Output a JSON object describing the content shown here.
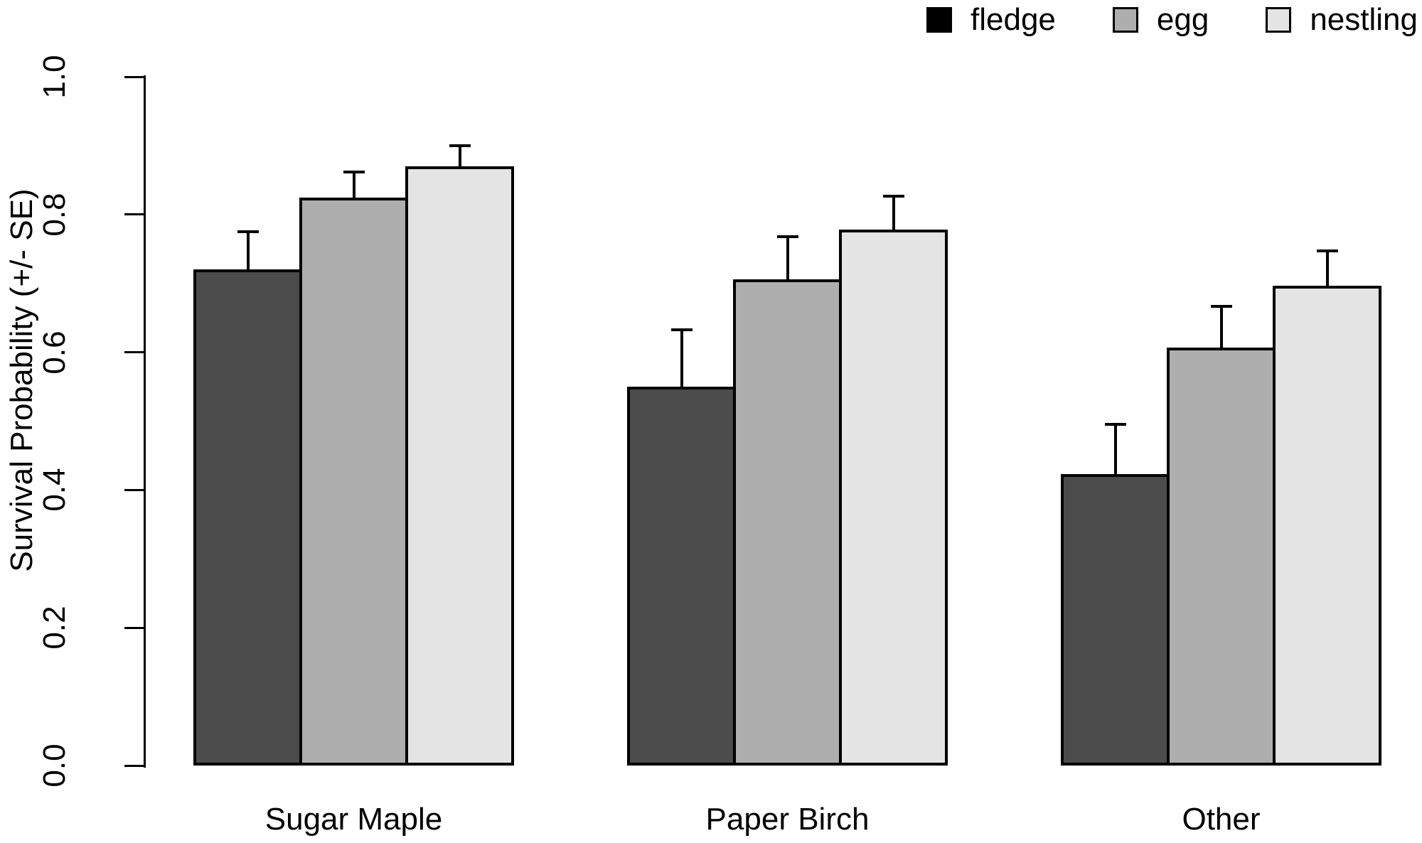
{
  "figure": {
    "background": "#ffffff"
  },
  "legend": {
    "position": "top-right",
    "items": [
      {
        "label": "fledge",
        "color": "#000000"
      },
      {
        "label": "egg",
        "color": "#aeaeae"
      },
      {
        "label": "nestling",
        "color": "#e4e4e4"
      }
    ]
  },
  "chart_data": {
    "type": "bar",
    "title": "",
    "xlabel": "",
    "ylabel": "Survival Probability (+/- SE)",
    "ylim": [
      0,
      1
    ],
    "yticks": [
      0.0,
      0.2,
      0.4,
      0.6,
      0.8,
      1.0
    ],
    "ytick_labels": [
      "0.0",
      "0.2",
      "0.4",
      "0.6",
      "0.8",
      "1.0"
    ],
    "categories": [
      "Sugar Maple",
      "Paper Birch",
      "Other"
    ],
    "series": [
      {
        "name": "fledge",
        "color": "#4c4c4c",
        "values": [
          0.72,
          0.55,
          0.423
        ],
        "se": [
          0.055,
          0.083,
          0.072
        ]
      },
      {
        "name": "egg",
        "color": "#aeaeae",
        "values": [
          0.825,
          0.706,
          0.607
        ],
        "se": [
          0.037,
          0.062,
          0.06
        ]
      },
      {
        "name": "nestling",
        "color": "#e4e4e4",
        "values": [
          0.87,
          0.778,
          0.697
        ],
        "se": [
          0.03,
          0.049,
          0.05
        ]
      }
    ],
    "error_bars": "upper standard error only, with caps",
    "bar_border_color": "#000000",
    "grid": false,
    "legend_position": "top-right"
  }
}
